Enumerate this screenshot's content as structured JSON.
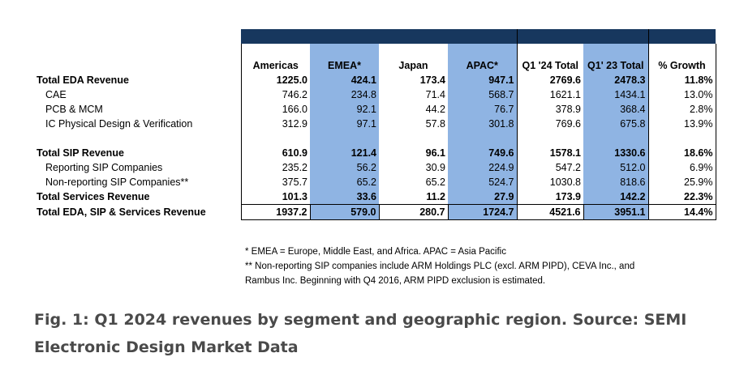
{
  "table": {
    "columns": [
      "Americas",
      "EMEA*",
      "Japan",
      "APAC*",
      "Q1 '24 Total",
      "Q1' 23 Total",
      "% Growth"
    ],
    "highlight_color": "#8fb4e3",
    "header_bar_color": "#17375e",
    "rows": [
      {
        "label": "Total EDA Revenue",
        "values": [
          "1225.0",
          "424.1",
          "173.4",
          "947.1",
          "2769.6",
          "2478.3",
          "11.8%"
        ]
      },
      {
        "label": "CAE",
        "values": [
          "746.2",
          "234.8",
          "71.4",
          "568.7",
          "1621.1",
          "1434.1",
          "13.0%"
        ]
      },
      {
        "label": "PCB & MCM",
        "values": [
          "166.0",
          "92.1",
          "44.2",
          "76.7",
          "378.9",
          "368.4",
          "2.8%"
        ]
      },
      {
        "label": "IC Physical Design & Verification",
        "values": [
          "312.9",
          "97.1",
          "57.8",
          "301.8",
          "769.6",
          "675.8",
          "13.9%"
        ]
      },
      {
        "label": "Total SIP Revenue",
        "values": [
          "610.9",
          "121.4",
          "96.1",
          "749.6",
          "1578.1",
          "1330.6",
          "18.6%"
        ]
      },
      {
        "label": "Reporting SIP Companies",
        "values": [
          "235.2",
          "56.2",
          "30.9",
          "224.9",
          "547.2",
          "512.0",
          "6.9%"
        ]
      },
      {
        "label": "Non-reporting SIP Companies**",
        "values": [
          "375.7",
          "65.2",
          "65.2",
          "524.7",
          "1030.8",
          "818.6",
          "25.9%"
        ]
      },
      {
        "label": "Total Services Revenue",
        "values": [
          "101.3",
          "33.6",
          "11.2",
          "27.9",
          "173.9",
          "142.2",
          "22.3%"
        ]
      },
      {
        "label": "Total EDA, SIP & Services Revenue",
        "values": [
          "1937.2",
          "579.0",
          "280.7",
          "1724.7",
          "4521.6",
          "3951.1",
          "14.4%"
        ]
      }
    ]
  },
  "notes": [
    "* EMEA = Europe, Middle East, and Africa. APAC = Asia Pacific",
    "** Non-reporting SIP companies include ARM Holdings PLC (excl. ARM PIPD), CEVA Inc., and",
    "Rambus Inc. Beginning with Q4 2016, ARM PIPD exclusion is estimated."
  ],
  "caption": "Fig. 1: Q1 2024 revenues by segment and geographic region. Source: SEMI Electronic Design Market Data"
}
